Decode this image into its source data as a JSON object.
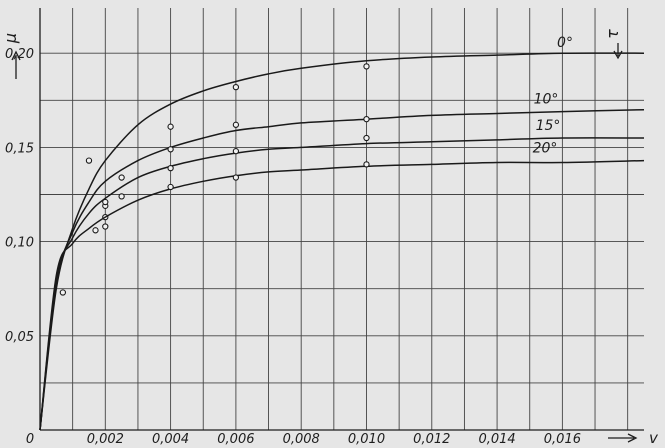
{
  "chart_data": {
    "type": "line",
    "xlabel": "v",
    "ylabel": "μ",
    "legend_title": "τ",
    "xlim": [
      0,
      0.0185
    ],
    "ylim": [
      0,
      0.224
    ],
    "x_ticks": [
      0.002,
      0.004,
      0.006,
      0.008,
      0.01,
      0.012,
      0.014,
      0.016
    ],
    "x_tick_labels": [
      "0,002",
      "0,004",
      "0,006",
      "0,008",
      "0,010",
      "0,012",
      "0,014",
      "0,016"
    ],
    "y_ticks": [
      0.05,
      0.1,
      0.15,
      0.2
    ],
    "y_tick_labels": [
      "0,05",
      "0,10",
      "0,15",
      "0,20"
    ],
    "origin_label": "0",
    "grid": true,
    "series": [
      {
        "name": "0°",
        "x": [
          0,
          0.0005,
          0.001,
          0.0015,
          0.002,
          0.003,
          0.004,
          0.005,
          0.006,
          0.007,
          0.008,
          0.01,
          0.012,
          0.014,
          0.016,
          0.0185
        ],
        "y": [
          0,
          0.075,
          0.107,
          0.128,
          0.143,
          0.162,
          0.173,
          0.18,
          0.185,
          0.189,
          0.192,
          0.196,
          0.198,
          0.199,
          0.2,
          0.2
        ],
        "markers_x": [
          0.0007,
          0.0015,
          0.002,
          0.004,
          0.006,
          0.01
        ],
        "markers_y": [
          0.073,
          0.143,
          0.119,
          0.161,
          0.182,
          0.193
        ]
      },
      {
        "name": "10°",
        "x": [
          0,
          0.0005,
          0.001,
          0.0015,
          0.002,
          0.003,
          0.004,
          0.005,
          0.006,
          0.007,
          0.008,
          0.01,
          0.012,
          0.014,
          0.016,
          0.0185
        ],
        "y": [
          0,
          0.078,
          0.105,
          0.121,
          0.132,
          0.143,
          0.15,
          0.155,
          0.159,
          0.161,
          0.163,
          0.165,
          0.167,
          0.168,
          0.169,
          0.17
        ],
        "markers_x": [
          0.0017,
          0.002,
          0.004,
          0.006,
          0.01
        ],
        "markers_y": [
          0.106,
          0.121,
          0.149,
          0.162,
          0.165
        ]
      },
      {
        "name": "15°",
        "x": [
          0,
          0.0005,
          0.001,
          0.0015,
          0.002,
          0.003,
          0.004,
          0.005,
          0.006,
          0.007,
          0.008,
          0.01,
          0.012,
          0.014,
          0.016,
          0.0185
        ],
        "y": [
          0,
          0.08,
          0.102,
          0.115,
          0.123,
          0.134,
          0.14,
          0.144,
          0.147,
          0.149,
          0.15,
          0.152,
          0.153,
          0.154,
          0.155,
          0.155
        ],
        "markers_x": [
          0.002,
          0.0025,
          0.004,
          0.006,
          0.01
        ],
        "markers_y": [
          0.113,
          0.134,
          0.139,
          0.148,
          0.155
        ]
      },
      {
        "name": "20°",
        "x": [
          0,
          0.0005,
          0.001,
          0.0015,
          0.002,
          0.003,
          0.004,
          0.005,
          0.006,
          0.007,
          0.008,
          0.01,
          0.012,
          0.014,
          0.016,
          0.0185
        ],
        "y": [
          0,
          0.082,
          0.099,
          0.107,
          0.113,
          0.122,
          0.128,
          0.132,
          0.135,
          0.137,
          0.138,
          0.14,
          0.141,
          0.142,
          0.142,
          0.143
        ],
        "markers_x": [
          0.002,
          0.0025,
          0.004,
          0.006,
          0.01
        ],
        "markers_y": [
          0.108,
          0.124,
          0.129,
          0.134,
          0.141
        ]
      }
    ]
  }
}
